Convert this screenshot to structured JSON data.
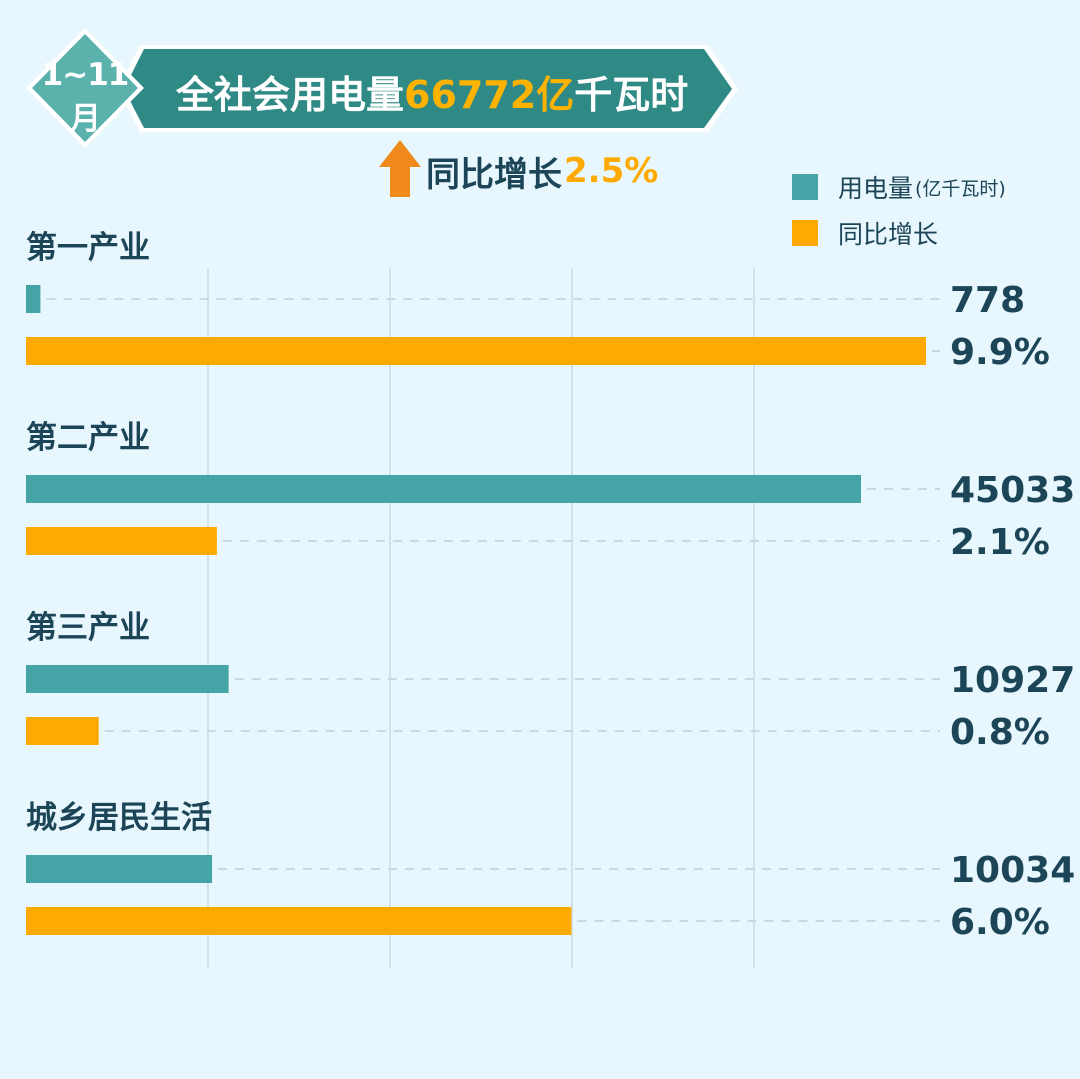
{
  "header": {
    "period_badge": "1~11月",
    "title_prefix": "全社会用电量",
    "title_value": "66772亿",
    "title_suffix": "千瓦时",
    "growth_label": "同比增长",
    "growth_value": "2.5%"
  },
  "legend": {
    "usage_label": "用电量",
    "usage_unit": "(亿千瓦时)",
    "growth_label": "同比增长"
  },
  "colors": {
    "usage": "#45a5a6",
    "growth": "#ffaa00",
    "banner": "#2f8a86",
    "text": "#1c4658",
    "background": "#e8f7fd"
  },
  "chart_data": {
    "type": "bar",
    "orientation": "horizontal",
    "categories": [
      "第一产业",
      "第二产业",
      "第三产业",
      "城乡居民生活"
    ],
    "series": [
      {
        "name": "用电量(亿千瓦时)",
        "values": [
          778,
          45033,
          10927,
          10034
        ],
        "labels": [
          "778",
          "45033",
          "10927",
          "10034"
        ]
      },
      {
        "name": "同比增长",
        "values": [
          9.9,
          2.1,
          0.8,
          6.0
        ],
        "labels": [
          "9.9%",
          "2.1%",
          "0.8%",
          "6.0%"
        ]
      }
    ],
    "grid": true,
    "legend_position": "top-right"
  }
}
